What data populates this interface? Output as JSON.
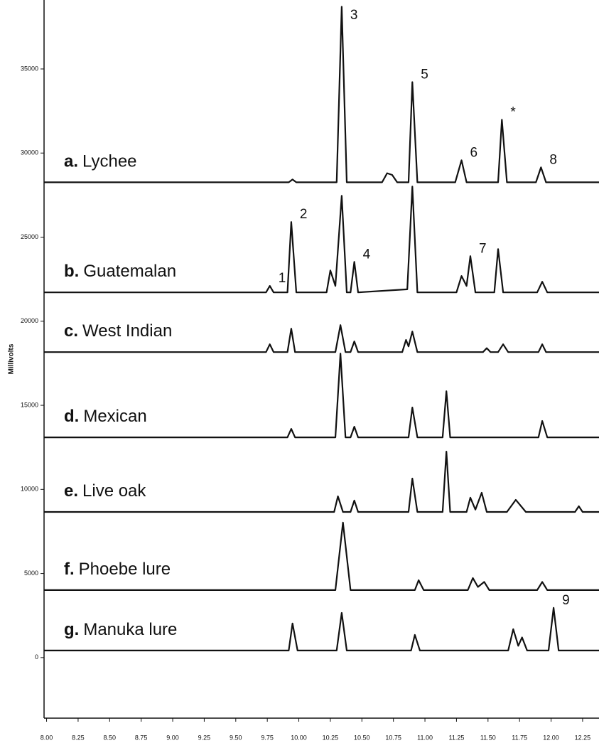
{
  "chart_data": {
    "type": "line",
    "y_label": "Millivolts",
    "xlim": [
      7.98,
      12.38
    ],
    "ylim": [
      -3600,
      39100
    ],
    "xticks": [
      {
        "value": 8,
        "label": "8.00"
      },
      {
        "value": 8.25,
        "label": "8.25"
      },
      {
        "value": 8.5,
        "label": "8.50"
      },
      {
        "value": 8.75,
        "label": "8.75"
      },
      {
        "value": 9,
        "label": "9.00"
      },
      {
        "value": 9.25,
        "label": "9.25"
      },
      {
        "value": 9.5,
        "label": "9.50"
      },
      {
        "value": 9.75,
        "label": "9.75"
      },
      {
        "value": 10,
        "label": "10.00"
      },
      {
        "value": 10.25,
        "label": "10.25"
      },
      {
        "value": 10.5,
        "label": "10.50"
      },
      {
        "value": 10.75,
        "label": "10.75"
      },
      {
        "value": 11,
        "label": "11.00"
      },
      {
        "value": 11.25,
        "label": "11.25"
      },
      {
        "value": 11.5,
        "label": "11.50"
      },
      {
        "value": 11.75,
        "label": "11.75"
      },
      {
        "value": 12,
        "label": "12.00"
      },
      {
        "value": 12.25,
        "label": "12.25"
      }
    ],
    "yticks": [
      0,
      5000,
      10000,
      15000,
      20000,
      25000,
      30000,
      35000
    ],
    "grid": false,
    "series": [
      {
        "tag": "a.",
        "name": "Lychee",
        "color": "#111111",
        "x": [
          7.98,
          9.92,
          9.95,
          9.98,
          10.3,
          10.34,
          10.38,
          10.66,
          10.7,
          10.74,
          10.78,
          10.87,
          10.9,
          10.94,
          11.24,
          11.29,
          11.33,
          11.58,
          11.61,
          11.65,
          11.88,
          11.92,
          11.96,
          12.38
        ],
        "values": [
          28260,
          28260,
          28430,
          28260,
          28260,
          38700,
          28260,
          28260,
          28800,
          28700,
          28260,
          28260,
          34220,
          28260,
          28260,
          29570,
          28260,
          28260,
          31980,
          28260,
          28260,
          29150,
          28260,
          28260
        ],
        "peaks": [
          {
            "text": "3",
            "x": 10.34
          },
          {
            "text": "5",
            "x": 10.9
          },
          {
            "text": "6",
            "x": 11.29
          },
          {
            "text": "*",
            "x": 11.61
          },
          {
            "text": "8",
            "x": 11.92
          }
        ]
      },
      {
        "tag": "b.",
        "name": "Guatemalan",
        "color": "#111111",
        "x": [
          7.98,
          9.74,
          9.77,
          9.8,
          9.91,
          9.94,
          9.98,
          10.22,
          10.25,
          10.29,
          10.34,
          10.38,
          10.41,
          10.44,
          10.47,
          10.86,
          10.9,
          10.94,
          11.25,
          11.29,
          11.33,
          11.36,
          11.4,
          11.55,
          11.58,
          11.62,
          11.89,
          11.93,
          11.97,
          12.38
        ],
        "values": [
          21715,
          21715,
          22100,
          21715,
          21715,
          25900,
          21715,
          21715,
          23020,
          22100,
          27460,
          21715,
          21715,
          23530,
          21715,
          21900,
          28010,
          21715,
          21715,
          22690,
          22100,
          23870,
          21715,
          21715,
          24290,
          21715,
          21715,
          22350,
          21715,
          21715
        ],
        "peaks": [
          {
            "text": "1",
            "x": 9.77
          },
          {
            "text": "2",
            "x": 9.94
          },
          {
            "text": "4",
            "x": 10.44
          },
          {
            "text": "7",
            "x": 11.36
          }
        ]
      },
      {
        "tag": "c.",
        "name": "West Indian",
        "color": "#111111",
        "x": [
          7.98,
          9.74,
          9.77,
          9.8,
          9.91,
          9.94,
          9.97,
          10.29,
          10.33,
          10.37,
          10.41,
          10.44,
          10.47,
          10.82,
          10.85,
          10.87,
          10.9,
          10.94,
          11.46,
          11.49,
          11.52,
          11.58,
          11.62,
          11.66,
          11.9,
          11.93,
          11.96,
          12.38
        ],
        "values": [
          18165,
          18165,
          18630,
          18165,
          18165,
          19560,
          18165,
          18165,
          19770,
          18165,
          18165,
          18800,
          18165,
          18165,
          18890,
          18500,
          19390,
          18165,
          18165,
          18400,
          18165,
          18165,
          18630,
          18165,
          18165,
          18630,
          18165,
          18165
        ]
      },
      {
        "tag": "d.",
        "name": "Mexican",
        "color": "#111111",
        "x": [
          7.98,
          9.91,
          9.94,
          9.97,
          10.29,
          10.33,
          10.37,
          10.41,
          10.44,
          10.47,
          10.87,
          10.9,
          10.94,
          11.14,
          11.17,
          11.2,
          11.9,
          11.93,
          11.97,
          12.38
        ],
        "values": [
          13095,
          13095,
          13600,
          13095,
          13095,
          18080,
          13095,
          13095,
          13730,
          13095,
          13095,
          14870,
          13095,
          13095,
          15840,
          13095,
          13095,
          14070,
          13095,
          13095
        ]
      },
      {
        "tag": "e.",
        "name": "Live oak",
        "color": "#111111",
        "x": [
          7.98,
          10.28,
          10.31,
          10.35,
          10.41,
          10.44,
          10.47,
          10.87,
          10.9,
          10.94,
          11.14,
          11.17,
          11.2,
          11.33,
          11.36,
          11.4,
          11.45,
          11.49,
          11.65,
          11.72,
          11.8,
          12.19,
          12.22,
          12.25,
          12.38
        ],
        "values": [
          8660,
          8660,
          9590,
          8660,
          8660,
          9340,
          8660,
          8660,
          10650,
          8660,
          8660,
          12250,
          8660,
          8660,
          9510,
          8800,
          9800,
          8660,
          8660,
          9380,
          8660,
          8660,
          9000,
          8660,
          8660
        ]
      },
      {
        "tag": "f.",
        "name": "Phoebe lure",
        "color": "#111111",
        "x": [
          7.98,
          10.29,
          10.35,
          10.41,
          10.92,
          10.95,
          10.99,
          11.34,
          11.38,
          11.42,
          11.47,
          11.51,
          11.89,
          11.93,
          11.97,
          12.38
        ],
        "values": [
          4015,
          4015,
          8030,
          4015,
          4015,
          4600,
          4015,
          4015,
          4730,
          4200,
          4500,
          4015,
          4015,
          4500,
          4015,
          4015
        ]
      },
      {
        "tag": "g.",
        "name": "Manuka lure",
        "color": "#111111",
        "x": [
          7.98,
          9.92,
          9.95,
          9.99,
          10.3,
          10.34,
          10.38,
          10.89,
          10.92,
          10.96,
          11.66,
          11.7,
          11.74,
          11.77,
          11.81,
          11.98,
          12.02,
          12.06,
          12.38
        ],
        "values": [
          420,
          420,
          2030,
          420,
          420,
          2660,
          420,
          420,
          1350,
          420,
          420,
          1690,
          700,
          1200,
          420,
          420,
          2960,
          420,
          420
        ],
        "peaks": [
          {
            "text": "9",
            "x": 12.02
          }
        ]
      }
    ]
  }
}
